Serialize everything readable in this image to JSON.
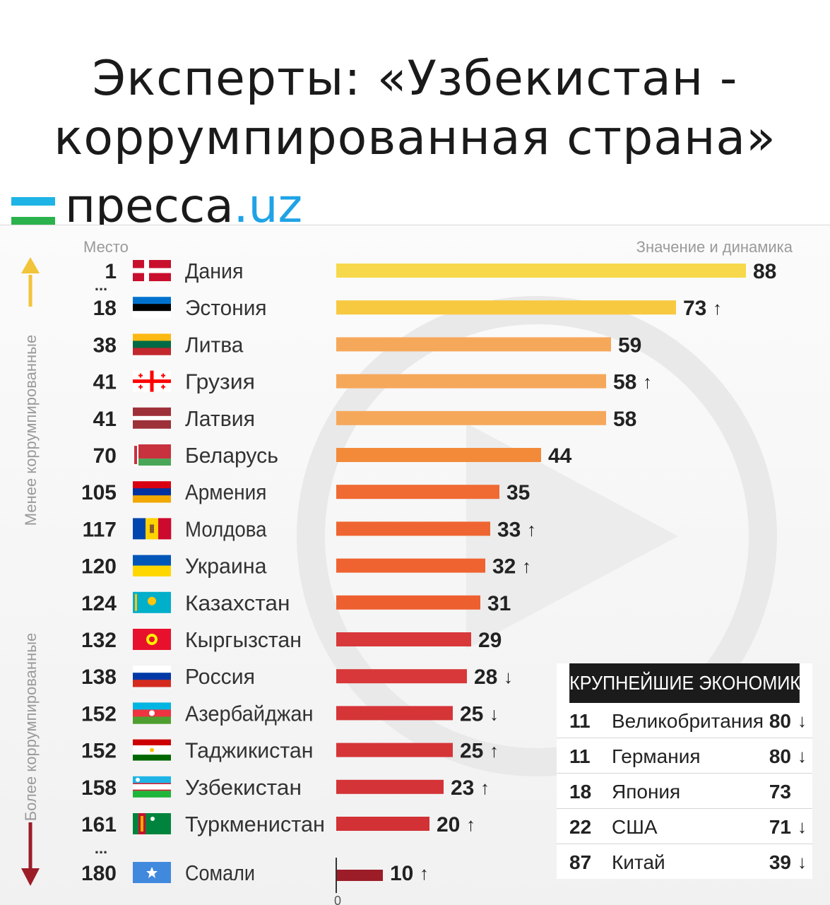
{
  "header": {
    "line1": "Эксперты: «Узбекистан -",
    "line2": "коррумпированная страна»"
  },
  "logo": {
    "main": "пресса",
    "domain": ".uz",
    "flag_colors": [
      "#1eb4e6",
      "#ffffff",
      "#2bb24c"
    ]
  },
  "chart_data": {
    "type": "bar",
    "orientation": "horizontal",
    "rank_header": "Место",
    "value_header": "Значение и динамика",
    "axis_zero_label": "0",
    "side_labels": {
      "top": "Менее коррумпированные",
      "bottom": "Более коррумпированные"
    },
    "ellipsis": "...",
    "arrow_up": "↑",
    "arrow_down": "↓",
    "xlim": [
      0,
      88
    ],
    "rows": [
      {
        "rank": "1",
        "country": "Дания",
        "value": 88,
        "trend": "",
        "color": "#f7d84a",
        "flag": "dk"
      },
      {
        "rank": "18",
        "country": "Эстония",
        "value": 73,
        "trend": "up",
        "color": "#f7c940",
        "flag": "ee"
      },
      {
        "rank": "38",
        "country": "Литва",
        "value": 59,
        "trend": "",
        "color": "#f6a85a",
        "flag": "lt"
      },
      {
        "rank": "41",
        "country": "Грузия",
        "value": 58,
        "trend": "up",
        "color": "#f6a85a",
        "flag": "ge"
      },
      {
        "rank": "41",
        "country": "Латвия",
        "value": 58,
        "trend": "",
        "color": "#f6a85a",
        "flag": "lv"
      },
      {
        "rank": "70",
        "country": "Беларусь",
        "value": 44,
        "trend": "",
        "color": "#f38a3a",
        "flag": "by"
      },
      {
        "rank": "105",
        "country": "Армения",
        "value": 35,
        "trend": "",
        "color": "#f06a33",
        "flag": "am"
      },
      {
        "rank": "117",
        "country": "Молдова",
        "value": 33,
        "trend": "up",
        "color": "#ef6531",
        "flag": "md"
      },
      {
        "rank": "120",
        "country": "Украина",
        "value": 32,
        "trend": "up",
        "color": "#ef6331",
        "flag": "ua"
      },
      {
        "rank": "124",
        "country": "Казахстан",
        "value": 31,
        "trend": "",
        "color": "#ee5f30",
        "flag": "kz"
      },
      {
        "rank": "132",
        "country": "Кыргызстан",
        "value": 29,
        "trend": "",
        "color": "#d8383a",
        "flag": "kg"
      },
      {
        "rank": "138",
        "country": "Россия",
        "value": 28,
        "trend": "down",
        "color": "#d8383a",
        "flag": "ru"
      },
      {
        "rank": "152",
        "country": "Азербайджан",
        "value": 25,
        "trend": "down",
        "color": "#d63538",
        "flag": "az"
      },
      {
        "rank": "152",
        "country": "Таджикистан",
        "value": 25,
        "trend": "up",
        "color": "#d63538",
        "flag": "tj"
      },
      {
        "rank": "158",
        "country": "Узбекистан",
        "value": 23,
        "trend": "up",
        "color": "#d43337",
        "flag": "uz"
      },
      {
        "rank": "161",
        "country": "Туркменистан",
        "value": 20,
        "trend": "up",
        "color": "#d23136",
        "flag": "tm"
      },
      {
        "rank": "180",
        "country": "Сомали",
        "value": 10,
        "trend": "up",
        "color": "#9c1c28",
        "flag": "so"
      }
    ]
  },
  "economies": {
    "title": "КРУПНЕЙШИЕ ЭКОНОМИКИ",
    "rows": [
      {
        "rank": "11",
        "country": "Великобритания",
        "value": "80",
        "arrow": "↓"
      },
      {
        "rank": "11",
        "country": "Германия",
        "value": "80",
        "arrow": "↓"
      },
      {
        "rank": "18",
        "country": "Япония",
        "value": "73",
        "arrow": ""
      },
      {
        "rank": "22",
        "country": "США",
        "value": "71",
        "arrow": "↓"
      },
      {
        "rank": "87",
        "country": "Китай",
        "value": "39",
        "arrow": "↓"
      }
    ]
  }
}
